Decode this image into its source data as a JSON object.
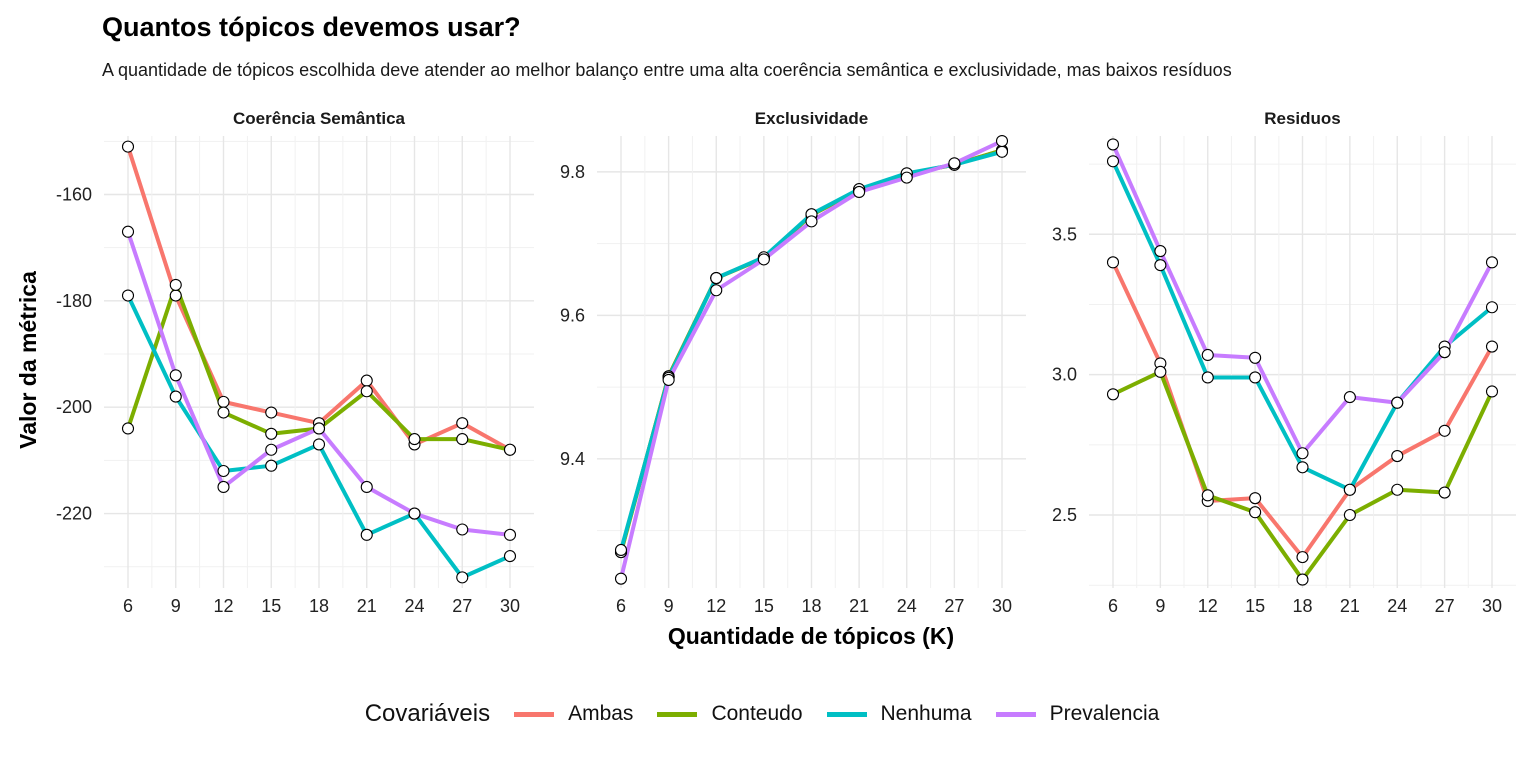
{
  "header": {
    "title": "Quantos tópicos devemos usar?",
    "subtitle": "A quantidade de tópicos escolhida deve atender ao melhor balanço entre uma alta coerência semântica e exclusividade, mas baixos resíduos"
  },
  "axes": {
    "xlabel": "Quantidade de tópicos (K)",
    "ylabel": "Valor da métrica"
  },
  "legend": {
    "title": "Covariáveis",
    "placement": "bottom"
  },
  "series_colors": {
    "Ambas": "#F8766D",
    "Conteudo": "#7CAE00",
    "Nenhuma": "#00BFC4",
    "Prevalencia": "#C77CFF"
  },
  "chart_data": [
    {
      "type": "line",
      "title": "Coerência Semântica",
      "x": [
        6,
        9,
        12,
        15,
        18,
        21,
        24,
        27,
        30
      ],
      "ylim": [
        -234,
        -149
      ],
      "yticks": [
        -160,
        -180,
        -200,
        -220
      ],
      "series": [
        {
          "name": "Ambas",
          "values": [
            -151,
            -179,
            -199,
            -201,
            -203,
            -195,
            -207,
            -203,
            -208
          ]
        },
        {
          "name": "Conteudo",
          "values": [
            -204,
            -177,
            -201,
            -205,
            -204,
            -197,
            -206,
            -206,
            -208
          ]
        },
        {
          "name": "Nenhuma",
          "values": [
            -179,
            -198,
            -212,
            -211,
            -207,
            -224,
            -220,
            -232,
            -228
          ]
        },
        {
          "name": "Prevalencia",
          "values": [
            -167,
            -194,
            -215,
            -208,
            -204,
            -215,
            -220,
            -223,
            -224
          ]
        }
      ]
    },
    {
      "type": "line",
      "title": "Exclusividade",
      "x": [
        6,
        9,
        12,
        15,
        18,
        21,
        24,
        27,
        30
      ],
      "ylim": [
        9.22,
        9.85
      ],
      "yticks": [
        9.8,
        9.6,
        9.4
      ],
      "series": [
        {
          "name": "Ambas",
          "values": [
            9.27,
            9.515,
            9.652,
            9.68,
            9.74,
            9.775,
            9.797,
            9.81,
            9.83
          ]
        },
        {
          "name": "Conteudo",
          "values": [
            9.27,
            9.515,
            9.652,
            9.68,
            9.74,
            9.775,
            9.797,
            9.81,
            9.83
          ]
        },
        {
          "name": "Nenhuma",
          "values": [
            9.273,
            9.513,
            9.652,
            9.681,
            9.741,
            9.776,
            9.798,
            9.81,
            9.828
          ]
        },
        {
          "name": "Prevalencia",
          "values": [
            9.233,
            9.51,
            9.635,
            9.678,
            9.731,
            9.772,
            9.792,
            9.812,
            9.843
          ]
        }
      ]
    },
    {
      "type": "line",
      "title": "Residuos",
      "x": [
        6,
        9,
        12,
        15,
        18,
        21,
        24,
        27,
        30
      ],
      "ylim": [
        2.24,
        3.85
      ],
      "yticks": [
        3.5,
        3.0,
        2.5
      ],
      "series": [
        {
          "name": "Ambas",
          "values": [
            3.4,
            3.04,
            2.55,
            2.56,
            2.35,
            2.59,
            2.71,
            2.8,
            3.1
          ]
        },
        {
          "name": "Conteudo",
          "values": [
            2.93,
            3.01,
            2.57,
            2.51,
            2.27,
            2.5,
            2.59,
            2.58,
            2.94
          ]
        },
        {
          "name": "Nenhuma",
          "values": [
            3.76,
            3.39,
            2.99,
            2.99,
            2.67,
            2.59,
            2.9,
            3.1,
            3.24
          ]
        },
        {
          "name": "Prevalencia",
          "values": [
            3.82,
            3.44,
            3.07,
            3.06,
            2.72,
            2.92,
            2.9,
            3.08,
            3.4
          ]
        }
      ]
    }
  ]
}
